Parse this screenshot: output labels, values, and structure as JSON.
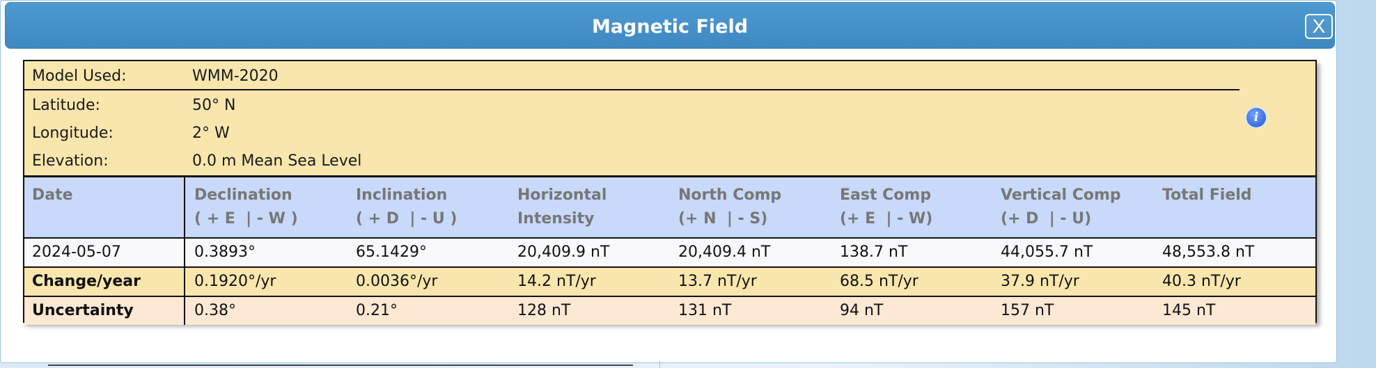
{
  "dialog": {
    "title": "Magnetic Field",
    "close_label": "X"
  },
  "meta": {
    "model_label": "Model Used:",
    "model_value": "WMM-2020",
    "latitude_label": "Latitude:",
    "latitude_value": "50° N",
    "longitude_label": "Longitude:",
    "longitude_value": "2° W",
    "elevation_label": "Elevation:",
    "elevation_value": "0.0 m Mean Sea Level"
  },
  "info_icon_glyph": "i",
  "table": {
    "headers": [
      {
        "line1": "Date",
        "line2": ""
      },
      {
        "line1": "Declination",
        "line2": "( + E  | - W )"
      },
      {
        "line1": "Inclination",
        "line2": "( + D  | - U )"
      },
      {
        "line1": "Horizontal",
        "line2": "Intensity"
      },
      {
        "line1": "North Comp",
        "line2": "(+ N  | - S)"
      },
      {
        "line1": "East Comp",
        "line2": "(+ E  | - W)"
      },
      {
        "line1": "Vertical Comp",
        "line2": "(+ D  | - U)"
      },
      {
        "line1": "Total Field",
        "line2": ""
      }
    ],
    "rows": [
      [
        "2024-05-07",
        "0.3893°",
        "65.1429°",
        "20,409.9 nT",
        "20,409.4 nT",
        "138.7 nT",
        "44,055.7 nT",
        "48,553.8 nT"
      ],
      [
        "Change/year",
        "0.1920°/yr",
        "0.0036°/yr",
        "14.2 nT/yr",
        "13.7 nT/yr",
        "68.5 nT/yr",
        "37.9 nT/yr",
        "40.3 nT/yr"
      ],
      [
        "Uncertainty",
        "0.38°",
        "0.21°",
        "128 nT",
        "131 nT",
        "94 nT",
        "157 nT",
        "145 nT"
      ]
    ]
  },
  "icons": {
    "close": "close-icon",
    "info": "info-icon"
  },
  "colors": {
    "titlebar": "#4590c9",
    "meta_bg": "#f8e6ad",
    "header_bg": "#c8d9f9",
    "uncertainty_bg": "#fde8d4"
  }
}
